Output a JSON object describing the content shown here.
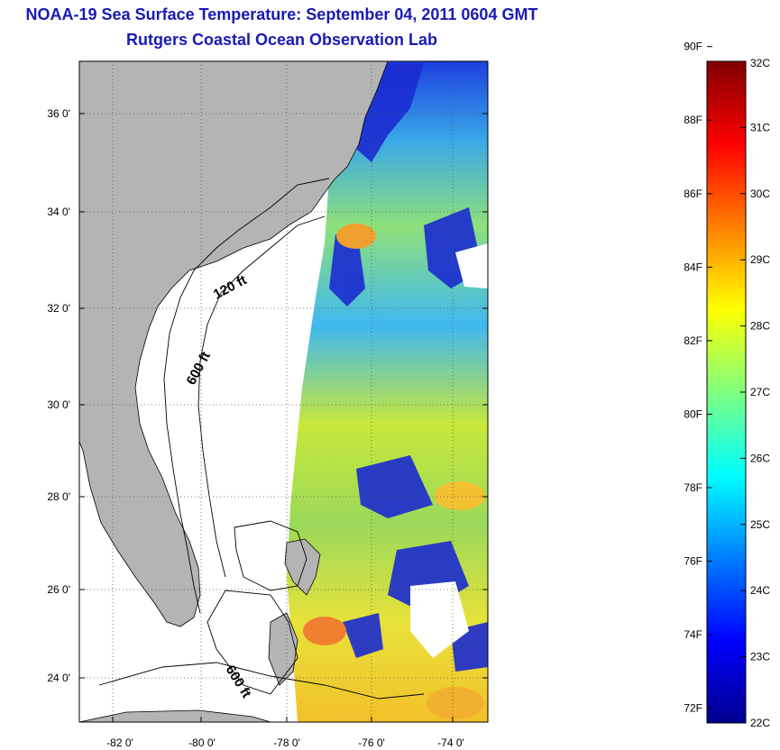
{
  "header": {
    "title": "NOAA-19 Sea Surface Temperature:  September 04, 2011 0604 GMT",
    "subtitle": "Rutgers Coastal Ocean Observation Lab"
  },
  "map": {
    "lat_ticks": [
      "36 0'",
      "34 0'",
      "32 0'",
      "30 0'",
      "28 0'",
      "26 0'",
      "24 0'"
    ],
    "lon_ticks": [
      "-82 0'",
      "-80 0'",
      "-78 0'",
      "-76 0'",
      "-74 0'"
    ],
    "contour_labels": [
      "120 ft",
      "600 ft",
      "600 ft"
    ],
    "land_color": "#b4b4b4",
    "no_data_color": "#ffffff"
  },
  "colorbar": {
    "fahrenheit_labels": [
      "90F",
      "88F",
      "86F",
      "84F",
      "82F",
      "80F",
      "78F",
      "76F",
      "74F",
      "72F"
    ],
    "celsius_labels": [
      "32C",
      "31C",
      "30C",
      "29C",
      "28C",
      "27C",
      "26C",
      "25C",
      "24C",
      "23C",
      "22C"
    ],
    "range_celsius": [
      22,
      32
    ],
    "colormap": "jet"
  }
}
